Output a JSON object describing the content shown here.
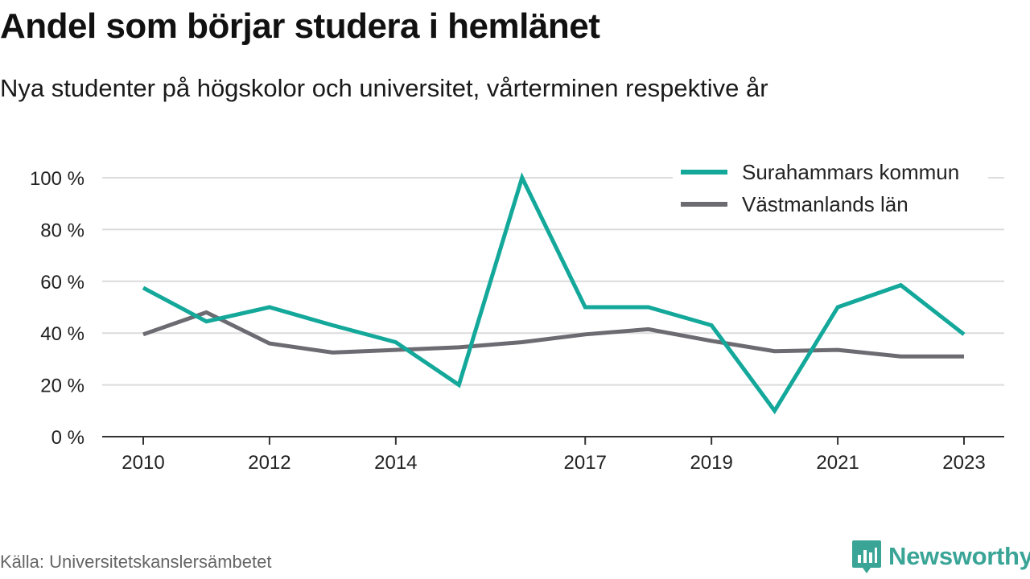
{
  "title": "Andel som börjar studera i hemlänet",
  "subtitle": "Nya studenter på högskolor och universitet, vårterminen respektive år",
  "source": "Källa: Universitetskanslersämbetet",
  "brand": {
    "name": "Newsworthy",
    "color": "#3aa597"
  },
  "colors": {
    "surahammar": "#14a89b",
    "vastmanland": "#6c6b72",
    "grid": "#dcdcdc",
    "axis": "#333333"
  },
  "chart_data": {
    "type": "line",
    "x": [
      2010,
      2011,
      2012,
      2013,
      2014,
      2015,
      2016,
      2017,
      2018,
      2019,
      2020,
      2021,
      2022,
      2023
    ],
    "xticks": [
      "2010",
      "2012",
      "2014",
      "2017",
      "2019",
      "2021",
      "2023"
    ],
    "xtick_values": [
      2010,
      2012,
      2014,
      2017,
      2019,
      2021,
      2023
    ],
    "yticks": [
      "0 %",
      "20 %",
      "40 %",
      "60 %",
      "80 %",
      "100 %"
    ],
    "ytick_values": [
      0,
      20,
      40,
      60,
      80,
      100
    ],
    "ylim": [
      0,
      100
    ],
    "grid": true,
    "legend": "top-right",
    "series": [
      {
        "name": "Surahammars kommun",
        "values": [
          57.5,
          44.5,
          50,
          43,
          36.5,
          20,
          100,
          50,
          50,
          43,
          10,
          50,
          58.5,
          39.5
        ]
      },
      {
        "name": "Västmanlands län",
        "values": [
          39.5,
          48,
          36,
          32.5,
          33.5,
          34.5,
          36.5,
          39.5,
          41.5,
          37,
          33,
          33.5,
          31,
          31
        ]
      }
    ]
  }
}
